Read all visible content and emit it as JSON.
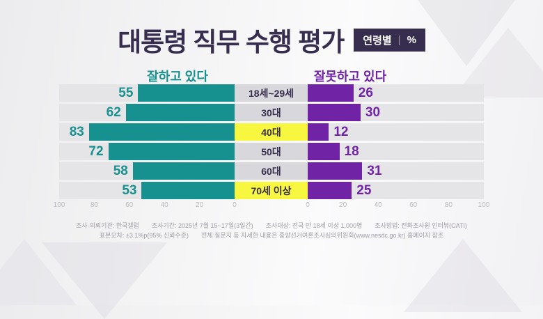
{
  "header": {
    "title": "대통령 직무 수행 평가",
    "badge": {
      "label": "연령별",
      "divider": "|",
      "unit": "%"
    }
  },
  "legend": {
    "left": "잘하고 있다",
    "right": "잘못하고 있다"
  },
  "chart_data": {
    "type": "bar",
    "layout": "diverging-horizontal",
    "categories": [
      "18세~29세",
      "30대",
      "40대",
      "50대",
      "60대",
      "70세 이상"
    ],
    "highlighted_categories": [
      "40대",
      "70세 이상"
    ],
    "series": [
      {
        "name": "잘하고 있다",
        "side": "left",
        "color": "#17918f",
        "values": [
          55,
          62,
          83,
          72,
          58,
          53
        ]
      },
      {
        "name": "잘못하고 있다",
        "side": "right",
        "color": "#7123a6",
        "values": [
          26,
          30,
          12,
          18,
          31,
          25
        ]
      }
    ],
    "xlim": [
      0,
      100
    ],
    "axis_ticks_left": [
      "100",
      "80",
      "60",
      "40",
      "20",
      "0"
    ],
    "axis_ticks_right": [
      "0",
      "20",
      "40",
      "60",
      "80",
      "100"
    ],
    "grid": false,
    "legend_position": "top"
  },
  "footer": {
    "line1_segments": [
      "조사·의뢰기관: 한국갤럽",
      "조사기간: 2025년 7월 15~17일(3일간)",
      "조사대상: 전국 만 18세 이상 1,000명",
      "조사방법: 전화조사원 인터뷰(CATI)"
    ],
    "line2_segments": [
      "표본오차: ±3.1%p(95% 신뢰수준)",
      "전체 질문지 등 자세한 내용은 중앙선거여론조사심의위원회(www.nesdc.go.kr) 홈페이지 참조"
    ]
  },
  "colors": {
    "approve": "#17918f",
    "disapprove": "#7123a6",
    "highlight": "#f8f73f",
    "title": "#372d4e",
    "track": "#e5e4e7",
    "category_bg": "#d8d7db"
  }
}
